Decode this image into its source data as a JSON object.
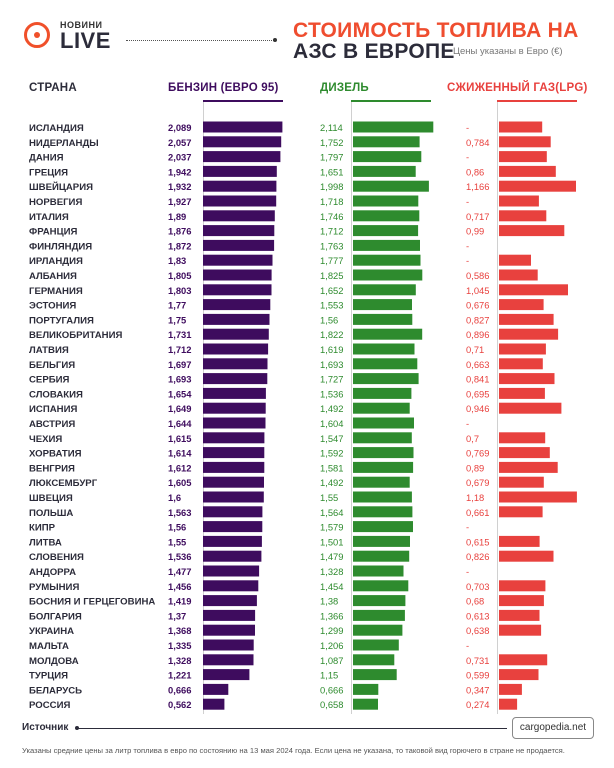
{
  "header": {
    "brand_small": "НОВИНИ",
    "brand_big": "LIVE",
    "title_line1": "СТОИМОСТЬ ТОПЛИВА НА",
    "title_line2": "АЗС В ЕВРОПЕ",
    "subtitle": "Цены указаны в Евро (€)"
  },
  "colors": {
    "petrol": "#3e0c5e",
    "diesel": "#2e8b2e",
    "lpg": "#e8413e",
    "accent": "#ef4d2f",
    "text": "#2c2c3a"
  },
  "chart_data": {
    "type": "bar",
    "title": "СТОИМОСТЬ ТОПЛИВА НА АЗС В ЕВРОПЕ",
    "subtitle": "Цены указаны в Евро (€)",
    "category_label": "СТРАНА",
    "categories": [
      "ИСЛАНДИЯ",
      "НИДЕРЛАНДЫ",
      "ДАНИЯ",
      "ГРЕЦИЯ",
      "ШВЕЙЦАРИЯ",
      "НОРВЕГИЯ",
      "ИТАЛИЯ",
      "ФРАНЦИЯ",
      "ФИНЛЯНДИЯ",
      "ИРЛАНДИЯ",
      "АЛБАНИЯ",
      "ГЕРМАНИЯ",
      "ЭСТОНИЯ",
      "ПОРТУГАЛИЯ",
      "ВЕЛИКОБРИТАНИЯ",
      "ЛАТВИЯ",
      "БЕЛЬГИЯ",
      "СЕРБИЯ",
      "СЛОВАКИЯ",
      "ИСПАНИЯ",
      "АВСТРИЯ",
      "ЧЕХИЯ",
      "ХОРВАТИЯ",
      "ВЕНГРИЯ",
      "ЛЮКСЕМБУРГ",
      "ШВЕЦИЯ",
      "ПОЛЬША",
      "КИПР",
      "ЛИТВА",
      "СЛОВЕНИЯ",
      "АНДОРРА",
      "РУМЫНИЯ",
      "БОСНИЯ И ГЕРЦЕГОВИНА",
      "БОЛГАРИЯ",
      "УКРАИНА",
      "МАЛЬТА",
      "МОЛДОВА",
      "ТУРЦИЯ",
      "БЕЛАРУСЬ",
      "РОССИЯ"
    ],
    "series": [
      {
        "name": "БЕНЗИН (ЕВРО 95)",
        "values": [
          2.089,
          2.057,
          2.037,
          1.942,
          1.932,
          1.927,
          1.89,
          1.876,
          1.872,
          1.83,
          1.805,
          1.803,
          1.77,
          1.75,
          1.731,
          1.712,
          1.697,
          1.693,
          1.654,
          1.649,
          1.644,
          1.615,
          1.614,
          1.612,
          1.605,
          1.6,
          1.563,
          1.56,
          1.55,
          1.536,
          1.477,
          1.456,
          1.419,
          1.37,
          1.368,
          1.335,
          1.328,
          1.221,
          0.666,
          0.562
        ],
        "labels": [
          "2,089",
          "2,057",
          "2,037",
          "1,942",
          "1,932",
          "1,927",
          "1,89",
          "1,876",
          "1,872",
          "1,83",
          "1,805",
          "1,803",
          "1,77",
          "1,75",
          "1,731",
          "1,712",
          "1,697",
          "1,693",
          "1,654",
          "1,649",
          "1,644",
          "1,615",
          "1,614",
          "1,612",
          "1,605",
          "1,6",
          "1,563",
          "1,56",
          "1,55",
          "1,536",
          "1,477",
          "1,456",
          "1,419",
          "1,37",
          "1,368",
          "1,335",
          "1,328",
          "1,221",
          "0,666",
          "0,562"
        ]
      },
      {
        "name": "ДИЗЕЛЬ",
        "values": [
          2.114,
          1.752,
          1.797,
          1.651,
          1.998,
          1.718,
          1.746,
          1.712,
          1.763,
          1.777,
          1.825,
          1.652,
          1.553,
          1.56,
          1.822,
          1.619,
          1.693,
          1.727,
          1.536,
          1.492,
          1.604,
          1.547,
          1.592,
          1.581,
          1.492,
          1.55,
          1.564,
          1.579,
          1.501,
          1.479,
          1.328,
          1.454,
          1.38,
          1.366,
          1.299,
          1.206,
          1.087,
          1.15,
          0.666,
          0.658
        ],
        "labels": [
          "2,114",
          "1,752",
          "1,797",
          "1,651",
          "1,998",
          "1,718",
          "1,746",
          "1,712",
          "1,763",
          "1,777",
          "1,825",
          "1,652",
          "1,553",
          "1,56",
          "1,822",
          "1,619",
          "1,693",
          "1,727",
          "1,536",
          "1,492",
          "1,604",
          "1,547",
          "1,592",
          "1,581",
          "1,492",
          "1,55",
          "1,564",
          "1,579",
          "1,501",
          "1,479",
          "1,328",
          "1,454",
          "1,38",
          "1,366",
          "1,299",
          "1,206",
          "1,087",
          "1,15",
          "0,666",
          "0,658"
        ]
      },
      {
        "name": "СЖИЖЕННЫЙ ГАЗ(LPG)",
        "values": [
          null,
          0.784,
          null,
          0.86,
          1.166,
          null,
          0.717,
          0.99,
          null,
          null,
          0.586,
          1.045,
          0.676,
          0.827,
          0.896,
          0.71,
          0.663,
          0.841,
          0.695,
          0.946,
          null,
          0.7,
          0.769,
          0.89,
          0.679,
          1.18,
          0.661,
          null,
          0.615,
          0.826,
          null,
          0.703,
          0.68,
          0.613,
          0.638,
          null,
          0.731,
          0.599,
          0.347,
          0.274
        ],
        "labels": [
          "-",
          "0,784",
          "-",
          "0,86",
          "1,166",
          "-",
          "0,717",
          "0,99",
          "-",
          "-",
          "0,586",
          "1,045",
          "0,676",
          "0,827",
          "0,896",
          "0,71",
          "0,663",
          "0,841",
          "0,695",
          "0,946",
          "-",
          "0,7",
          "0,769",
          "0,89",
          "0,679",
          "1,18",
          "0,661",
          "-",
          "0,615",
          "0,826",
          "-",
          "0,703",
          "0,68",
          "0,613",
          "0,638",
          "-",
          "0,731",
          "0,599",
          "0,347",
          "0,274"
        ]
      }
    ],
    "lpg_missing_bars": [
      0.655,
      null,
      0.724,
      null,
      null,
      0.605,
      null,
      null,
      null,
      0.485
    ]
  },
  "footer": {
    "source_label": "Источник",
    "source_site": "cargopedia.net",
    "note": "Указаны средние цены за литр топлива в евро по состоянию на 13 мая 2024 года. Если цена не указана, то таковой вид горючего в стране не продается."
  }
}
